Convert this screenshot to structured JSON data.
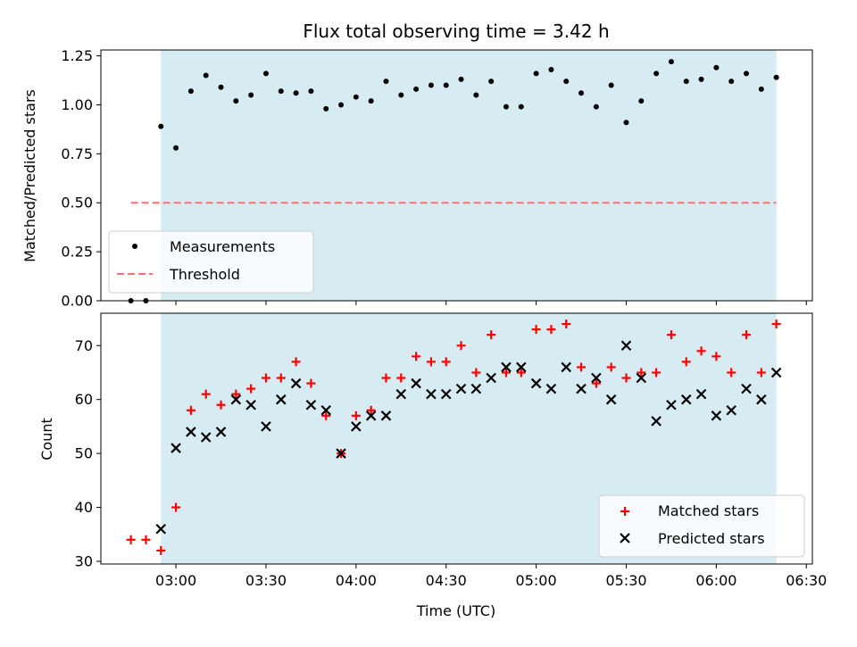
{
  "chart_data": [
    {
      "type": "scatter",
      "title": "Flux total observing time = 3.42 h",
      "xlabel": "",
      "ylabel": "Matched/Predicted stars",
      "ylim": [
        0,
        1.28
      ],
      "yticks": [
        "0.00",
        "0.25",
        "0.50",
        "0.75",
        "1.00",
        "1.25"
      ],
      "shaded_x_range": [
        "02:55",
        "06:20"
      ],
      "series": [
        {
          "name": "Measurements",
          "color": "#000000",
          "marker": "dot",
          "x": [
            "02:45",
            "02:50",
            "02:55",
            "03:00",
            "03:05",
            "03:10",
            "03:15",
            "03:20",
            "03:25",
            "03:30",
            "03:35",
            "03:40",
            "03:45",
            "03:50",
            "03:55",
            "04:00",
            "04:05",
            "04:10",
            "04:15",
            "04:20",
            "04:25",
            "04:30",
            "04:35",
            "04:40",
            "04:45",
            "04:50",
            "04:55",
            "05:00",
            "05:05",
            "05:10",
            "05:15",
            "05:20",
            "05:25",
            "05:30",
            "05:35",
            "05:40",
            "05:45",
            "05:50",
            "05:55",
            "06:00",
            "06:05",
            "06:10",
            "06:15",
            "06:20"
          ],
          "values": [
            0.0,
            0.0,
            0.89,
            0.78,
            1.07,
            1.15,
            1.09,
            1.02,
            1.05,
            1.16,
            1.07,
            1.06,
            1.07,
            0.98,
            1.0,
            1.04,
            1.02,
            1.12,
            1.05,
            1.08,
            1.1,
            1.1,
            1.13,
            1.05,
            1.12,
            0.99,
            0.99,
            1.16,
            1.18,
            1.12,
            1.06,
            0.99,
            1.1,
            0.91,
            1.02,
            1.16,
            1.22,
            1.12,
            1.13,
            1.19,
            1.12,
            1.16,
            1.08,
            1.14
          ]
        },
        {
          "name": "Threshold",
          "color": "#ff6f6f",
          "style": "dashed",
          "x": [
            "02:45",
            "06:20"
          ],
          "values": [
            0.5,
            0.5
          ]
        }
      ],
      "legend": "lower-left"
    },
    {
      "type": "scatter",
      "title": "",
      "xlabel": "Time (UTC)",
      "ylabel": "Count",
      "ylim": [
        29.5,
        76
      ],
      "yticks": [
        "30",
        "40",
        "50",
        "60",
        "70"
      ],
      "xlim": [
        "02:35",
        "06:32"
      ],
      "xticks": [
        "03:00",
        "03:30",
        "04:00",
        "04:30",
        "05:00",
        "05:30",
        "06:00",
        "06:30"
      ],
      "shaded_x_range": [
        "02:55",
        "06:20"
      ],
      "series": [
        {
          "name": "Matched stars",
          "color": "#ff0000",
          "marker": "plus",
          "x": [
            "02:45",
            "02:50",
            "02:55",
            "03:00",
            "03:05",
            "03:10",
            "03:15",
            "03:20",
            "03:25",
            "03:30",
            "03:35",
            "03:40",
            "03:45",
            "03:50",
            "03:55",
            "04:00",
            "04:05",
            "04:10",
            "04:15",
            "04:20",
            "04:25",
            "04:30",
            "04:35",
            "04:40",
            "04:45",
            "04:50",
            "04:55",
            "05:00",
            "05:05",
            "05:10",
            "05:15",
            "05:20",
            "05:25",
            "05:30",
            "05:35",
            "05:40",
            "05:45",
            "05:50",
            "05:55",
            "06:00",
            "06:05",
            "06:10",
            "06:15",
            "06:20"
          ],
          "values": [
            34,
            34,
            32,
            40,
            58,
            61,
            59,
            61,
            62,
            64,
            64,
            67,
            63,
            57,
            50,
            57,
            58,
            64,
            64,
            68,
            67,
            67,
            70,
            65,
            72,
            65,
            65,
            73,
            73,
            74,
            66,
            63,
            66,
            64,
            65,
            65,
            72,
            67,
            69,
            68,
            65,
            72,
            65,
            74
          ]
        },
        {
          "name": "Predicted stars",
          "color": "#000000",
          "marker": "x",
          "x": [
            "02:55",
            "03:00",
            "03:05",
            "03:10",
            "03:15",
            "03:20",
            "03:25",
            "03:30",
            "03:35",
            "03:40",
            "03:45",
            "03:50",
            "03:55",
            "04:00",
            "04:05",
            "04:10",
            "04:15",
            "04:20",
            "04:25",
            "04:30",
            "04:35",
            "04:40",
            "04:45",
            "04:50",
            "04:55",
            "05:00",
            "05:05",
            "05:10",
            "05:15",
            "05:20",
            "05:25",
            "05:30",
            "05:35",
            "05:40",
            "05:45",
            "05:50",
            "05:55",
            "06:00",
            "06:05",
            "06:10",
            "06:15",
            "06:20"
          ],
          "values": [
            36,
            51,
            54,
            53,
            54,
            60,
            59,
            55,
            60,
            63,
            59,
            58,
            50,
            55,
            57,
            57,
            61,
            63,
            61,
            61,
            62,
            62,
            64,
            66,
            66,
            63,
            62,
            66,
            62,
            64,
            60,
            70,
            64,
            56,
            59,
            60,
            61,
            57,
            58,
            62,
            60,
            65
          ]
        }
      ],
      "legend": "lower-right"
    }
  ]
}
